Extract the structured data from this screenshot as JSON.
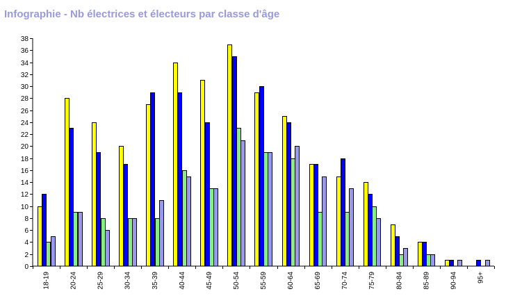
{
  "title": "Infographie - Nb électrices et électeurs par classe d'âge",
  "chart_data": {
    "type": "bar",
    "title": "Infographie - Nb électrices et électeurs par classe d'âge",
    "xlabel": "",
    "ylabel": "",
    "ylim": [
      0,
      38
    ],
    "yticks": [
      0,
      2,
      4,
      6,
      8,
      10,
      12,
      14,
      16,
      18,
      20,
      22,
      24,
      26,
      28,
      30,
      32,
      34,
      36,
      38
    ],
    "grid": false,
    "legend": "none",
    "categories": [
      "18-19",
      "20-24",
      "25-29",
      "30-34",
      "35-39",
      "40-44",
      "45-49",
      "50-54",
      "55-59",
      "60-64",
      "65-69",
      "70-74",
      "75-79",
      "80-84",
      "85-89",
      "90-94",
      "95+"
    ],
    "series": [
      {
        "color": "#ffff00",
        "values": [
          10,
          28,
          24,
          20,
          27,
          34,
          31,
          37,
          29,
          25,
          17,
          15,
          14,
          7,
          4,
          1,
          0
        ]
      },
      {
        "color": "#0000ff",
        "values": [
          12,
          23,
          19,
          17,
          29,
          29,
          24,
          35,
          30,
          24,
          17,
          18,
          12,
          5,
          4,
          1,
          1
        ]
      },
      {
        "color": "#88ee88",
        "values": [
          4,
          9,
          8,
          8,
          8,
          16,
          13,
          23,
          19,
          18,
          9,
          9,
          10,
          2,
          2,
          0,
          0
        ]
      },
      {
        "color": "#9999ee",
        "values": [
          5,
          9,
          6,
          8,
          11,
          15,
          13,
          21,
          19,
          20,
          15,
          13,
          8,
          3,
          2,
          1,
          1
        ]
      }
    ]
  }
}
